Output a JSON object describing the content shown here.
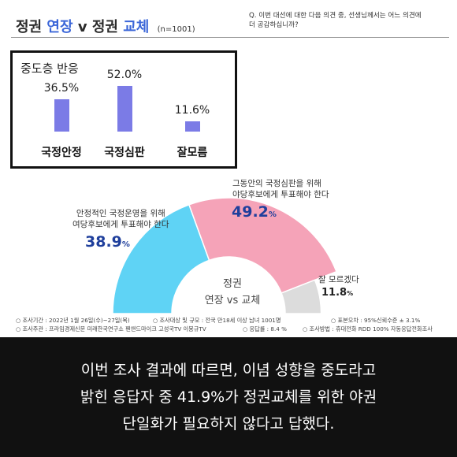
{
  "header": {
    "title_part1": "정권",
    "title_part2": "연장",
    "title_part3": "v",
    "title_part4": "정권",
    "title_part5": "교체",
    "sample": "(n=1001)",
    "question_line1": "Q. 이번 대선에 대한 다음 의견 중, 선생님께서는 어느 의견에",
    "question_line2": "더 공감하십니까?"
  },
  "moderate": {
    "title": "중도층 반응"
  },
  "donut": {
    "center_title": "정권",
    "center_sub": "연장 vs 교체",
    "labels": [
      {
        "line1": "안정적인 국정운영을 위해",
        "line2": "여당후보에게 투표해야 한다",
        "pct": "38.9",
        "unit": "%"
      },
      {
        "line1": "그동안의 국정심판을 위해",
        "line2": "야당후보에게 투표해야 한다",
        "pct": "49.2",
        "unit": "%"
      },
      {
        "line1": "잘 모르겠다",
        "line2": "",
        "pct": "11.8",
        "unit": "%"
      }
    ]
  },
  "footnotes": {
    "period": "○ 조사기간 : 2022년 1월 26일(수)~27일(목)",
    "target": "○ 조사대상 및 규모 : 전국 만18세 이상 남녀 1001명",
    "margin": "○ 표본오차 : 95%신뢰수준 ± 3.1%",
    "host": "○ 조사주관 : 프라임경제신문 미래한국연구소 펜앤드마이크 고성국TV 이봉규TV",
    "response": "○ 응답률 : 8.4 %",
    "method": "○ 조사방법 : 휴대전화 RDD 100% 자동응답전화조사"
  },
  "caption": {
    "line1": "이번 조사 결과에 따르면, 이념 성향을 중도라고",
    "line2": "밝힌 응답자 중 41.9%가 정권교체를 위한 야권",
    "line3": "단일화가 필요하지 않다고 답했다."
  },
  "colors": {
    "accent_blue": "#3b66d8",
    "bar": "#7b7be6",
    "cyan": "#5fd3f5",
    "pink": "#f5a3b8",
    "gray": "#dcdcdc"
  },
  "chart_data": [
    {
      "type": "bar",
      "title": "중도층 반응",
      "categories": [
        "국정안정",
        "국정심판",
        "잘모름"
      ],
      "values": [
        36.5,
        52.0,
        11.6
      ],
      "value_labels": [
        "36.5%",
        "52.0%",
        "11.6%"
      ],
      "ylim": [
        0,
        52
      ],
      "grid": false
    },
    {
      "type": "pie",
      "subtype": "semi-donut",
      "categories": [
        "안정적인 국정운영을 위해 여당후보에게 투표해야 한다",
        "그동안의 국정심판을 위해 야당후보에게 투표해야 한다",
        "잘 모르겠다"
      ],
      "values": [
        38.9,
        49.2,
        11.8
      ]
    }
  ]
}
